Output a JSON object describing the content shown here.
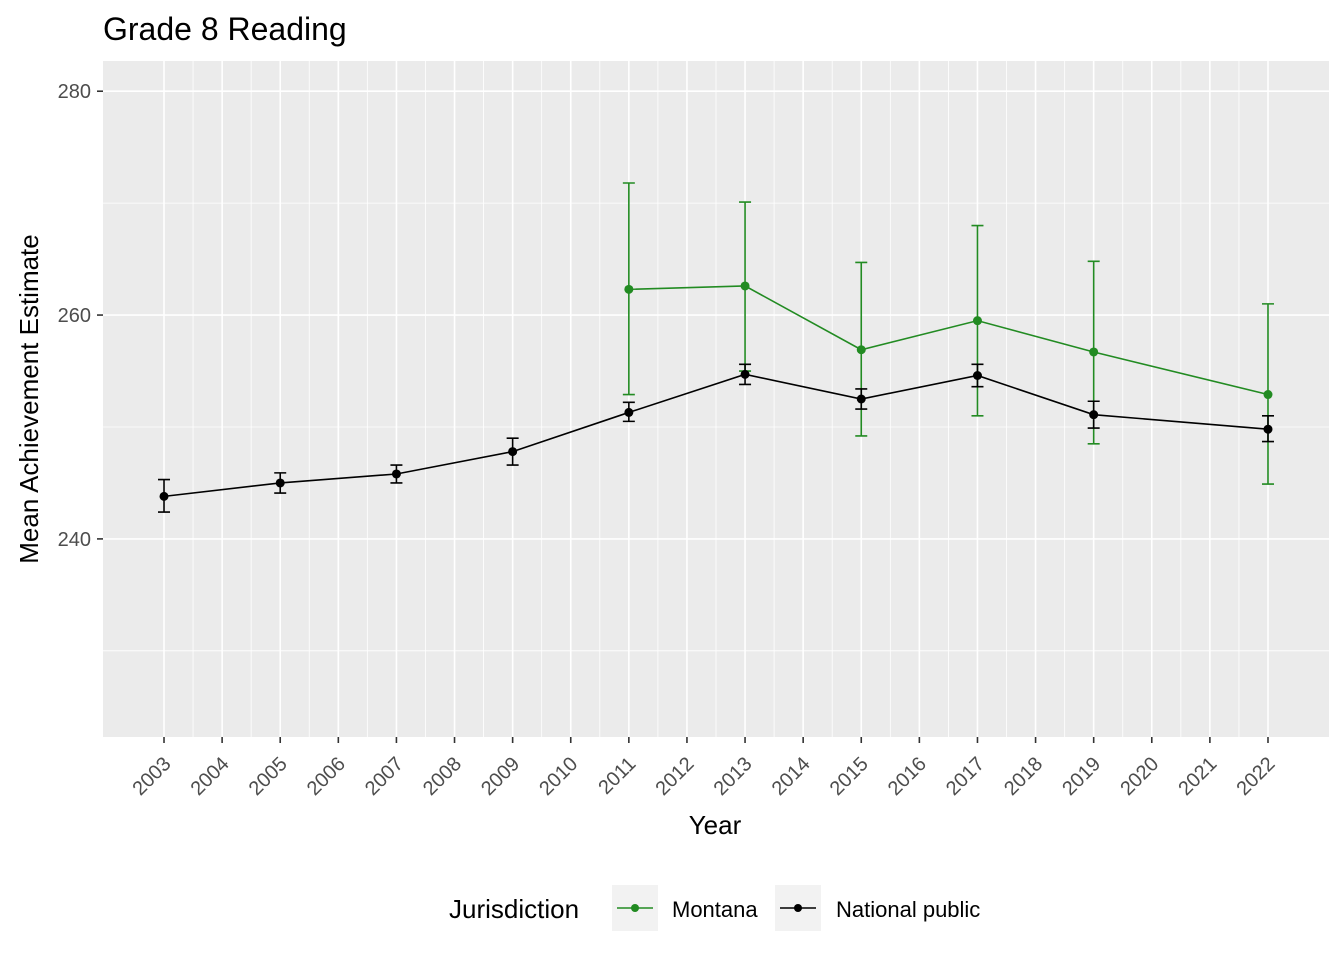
{
  "chart_data": {
    "type": "line",
    "title": "Grade 8 Reading",
    "xlabel": "Year",
    "ylabel": "Mean Achievement Estimate",
    "x_ticks": [
      2003,
      2004,
      2005,
      2006,
      2007,
      2008,
      2009,
      2010,
      2011,
      2012,
      2013,
      2014,
      2015,
      2016,
      2017,
      2018,
      2019,
      2020,
      2021,
      2022
    ],
    "xlim": [
      2001.95,
      2023.05
    ],
    "ylim": [
      222.3,
      282.7
    ],
    "y_ticks": [
      240,
      260,
      280
    ],
    "y_minor_ticks": [
      230,
      250,
      270
    ],
    "grid": true,
    "legend": {
      "title": "Jurisdiction",
      "position": "bottom"
    },
    "series": [
      {
        "name": "Montana",
        "color": "#228B22",
        "points": [
          {
            "x": 2011,
            "y": 262.3,
            "lower": 252.9,
            "upper": 271.8
          },
          {
            "x": 2013,
            "y": 262.6,
            "lower": 255.0,
            "upper": 270.1
          },
          {
            "x": 2015,
            "y": 256.9,
            "lower": 249.2,
            "upper": 264.7
          },
          {
            "x": 2017,
            "y": 259.5,
            "lower": 251.0,
            "upper": 268.0
          },
          {
            "x": 2019,
            "y": 256.7,
            "lower": 248.5,
            "upper": 264.8
          },
          {
            "x": 2022,
            "y": 252.9,
            "lower": 244.9,
            "upper": 261.0
          }
        ]
      },
      {
        "name": "National public",
        "color": "#000000",
        "points": [
          {
            "x": 2003,
            "y": 243.8,
            "lower": 242.4,
            "upper": 245.3
          },
          {
            "x": 2005,
            "y": 245.0,
            "lower": 244.1,
            "upper": 245.9
          },
          {
            "x": 2007,
            "y": 245.8,
            "lower": 245.0,
            "upper": 246.6
          },
          {
            "x": 2009,
            "y": 247.8,
            "lower": 246.6,
            "upper": 249.0
          },
          {
            "x": 2011,
            "y": 251.3,
            "lower": 250.5,
            "upper": 252.2
          },
          {
            "x": 2013,
            "y": 254.7,
            "lower": 253.8,
            "upper": 255.6
          },
          {
            "x": 2015,
            "y": 252.5,
            "lower": 251.6,
            "upper": 253.4
          },
          {
            "x": 2017,
            "y": 254.6,
            "lower": 253.6,
            "upper": 255.6
          },
          {
            "x": 2019,
            "y": 251.1,
            "lower": 249.9,
            "upper": 252.3
          },
          {
            "x": 2022,
            "y": 249.8,
            "lower": 248.7,
            "upper": 251.0
          }
        ]
      }
    ]
  }
}
